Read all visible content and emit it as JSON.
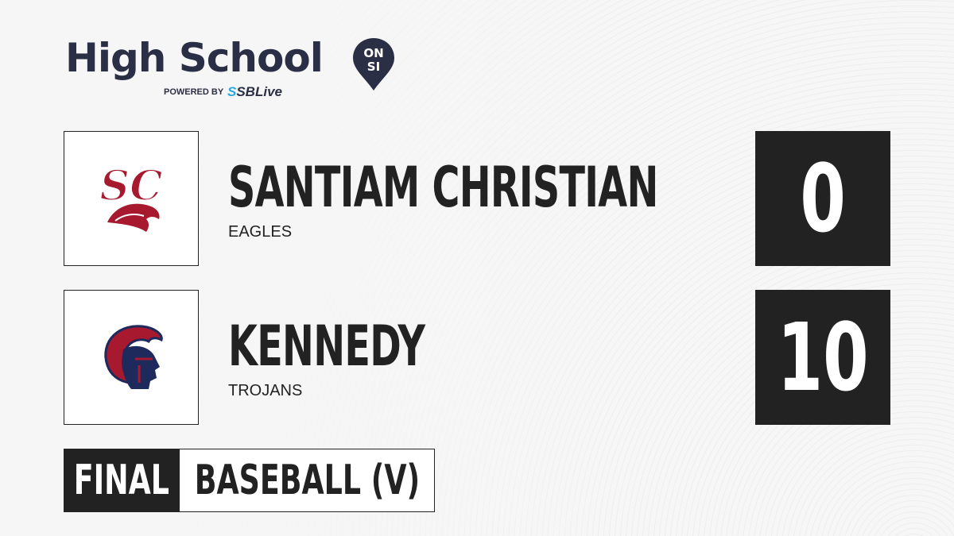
{
  "brand": {
    "title": "High School",
    "badge_top": "ON",
    "badge_bottom": "SI",
    "powered_by": "POWERED BY",
    "partner_s": "S",
    "partner": "SBLive",
    "text_color": "#2b2f45",
    "accent": "#29a9e0"
  },
  "teams": [
    {
      "name": "SANTIAM CHRISTIAN",
      "mascot": "EAGLES",
      "score": "0",
      "logo_text": "SC",
      "logo_color": "#a6192e"
    },
    {
      "name": "KENNEDY",
      "mascot": "TROJANS",
      "score": "10",
      "logo_color": "#1f2a5c"
    }
  ],
  "game": {
    "status": "FINAL",
    "sport": "BASEBALL (V)"
  }
}
